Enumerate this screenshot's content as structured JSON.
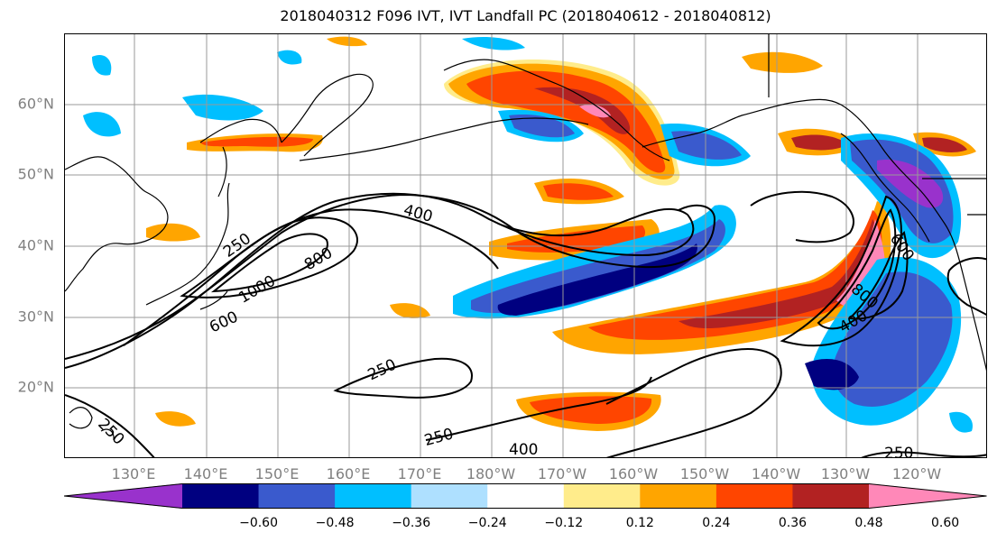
{
  "title": "2018040312 F096 IVT, IVT Landfall PC (2018040612 - 2018040812)",
  "map": {
    "lat_ticks": [
      "60°N",
      "50°N",
      "40°N",
      "30°N",
      "20°N"
    ],
    "lon_ticks": [
      "130°E",
      "140°E",
      "150°E",
      "160°E",
      "170°E",
      "180°W",
      "170°W",
      "160°W",
      "150°W",
      "140°W",
      "130°W",
      "120°W"
    ],
    "grid": true,
    "contour_labels": [
      "400",
      "250",
      "800",
      "1000",
      "600",
      "250",
      "250",
      "400",
      "250",
      "600",
      "800",
      "400",
      "250"
    ]
  },
  "colorbar": {
    "colors": [
      "#9932cc",
      "#000080",
      "#3a5acd",
      "#00bfff",
      "#aee0ff",
      "#ffffff",
      "#ffec8b",
      "#ffa500",
      "#ff4500",
      "#b22222",
      "#ff88b8"
    ],
    "tick_labels": [
      "−0.60",
      "−0.48",
      "−0.36",
      "−0.24",
      "−0.12",
      "0.12",
      "0.24",
      "0.36",
      "0.48",
      "0.60"
    ],
    "extend": "both"
  }
}
